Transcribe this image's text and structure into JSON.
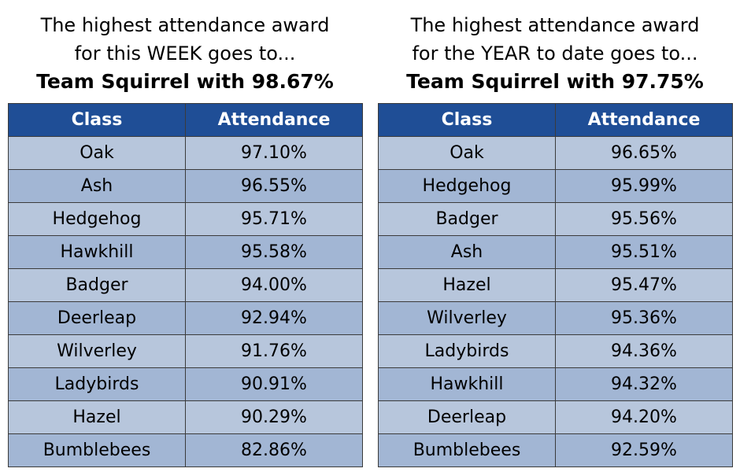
{
  "week": {
    "heading_line1": "The highest attendance award",
    "heading_line2": "for this WEEK goes to...",
    "winner": "Team Squirrel with 98.67%",
    "columns": [
      "Class",
      "Attendance"
    ],
    "rows": [
      [
        "Oak",
        "97.10%"
      ],
      [
        "Ash",
        "96.55%"
      ],
      [
        "Hedgehog",
        "95.71%"
      ],
      [
        "Hawkhill",
        "95.58%"
      ],
      [
        "Badger",
        "94.00%"
      ],
      [
        "Deerleap",
        "92.94%"
      ],
      [
        "Wilverley",
        "91.76%"
      ],
      [
        "Ladybirds",
        "90.91%"
      ],
      [
        "Hazel",
        "90.29%"
      ],
      [
        "Bumblebees",
        "82.86%"
      ]
    ]
  },
  "year": {
    "heading_line1": "The highest attendance award",
    "heading_line2": "for the YEAR to date goes to...",
    "winner": "Team Squirrel with 97.75%",
    "columns": [
      "Class",
      "Attendance"
    ],
    "rows": [
      [
        "Oak",
        "96.65%"
      ],
      [
        "Hedgehog",
        "95.99%"
      ],
      [
        "Badger",
        "95.56%"
      ],
      [
        "Ash",
        "95.51%"
      ],
      [
        "Hazel",
        "95.47%"
      ],
      [
        "Wilverley",
        "95.36%"
      ],
      [
        "Ladybirds",
        "94.36%"
      ],
      [
        "Hawkhill",
        "94.32%"
      ],
      [
        "Deerleap",
        "94.20%"
      ],
      [
        "Bumblebees",
        "92.59%"
      ]
    ]
  },
  "colors": {
    "header_bg": "#1f4e96",
    "header_text": "#ffffff",
    "row_light": "#b7c6dc",
    "row_dark": "#a2b6d4",
    "border": "#3b3b3b"
  }
}
